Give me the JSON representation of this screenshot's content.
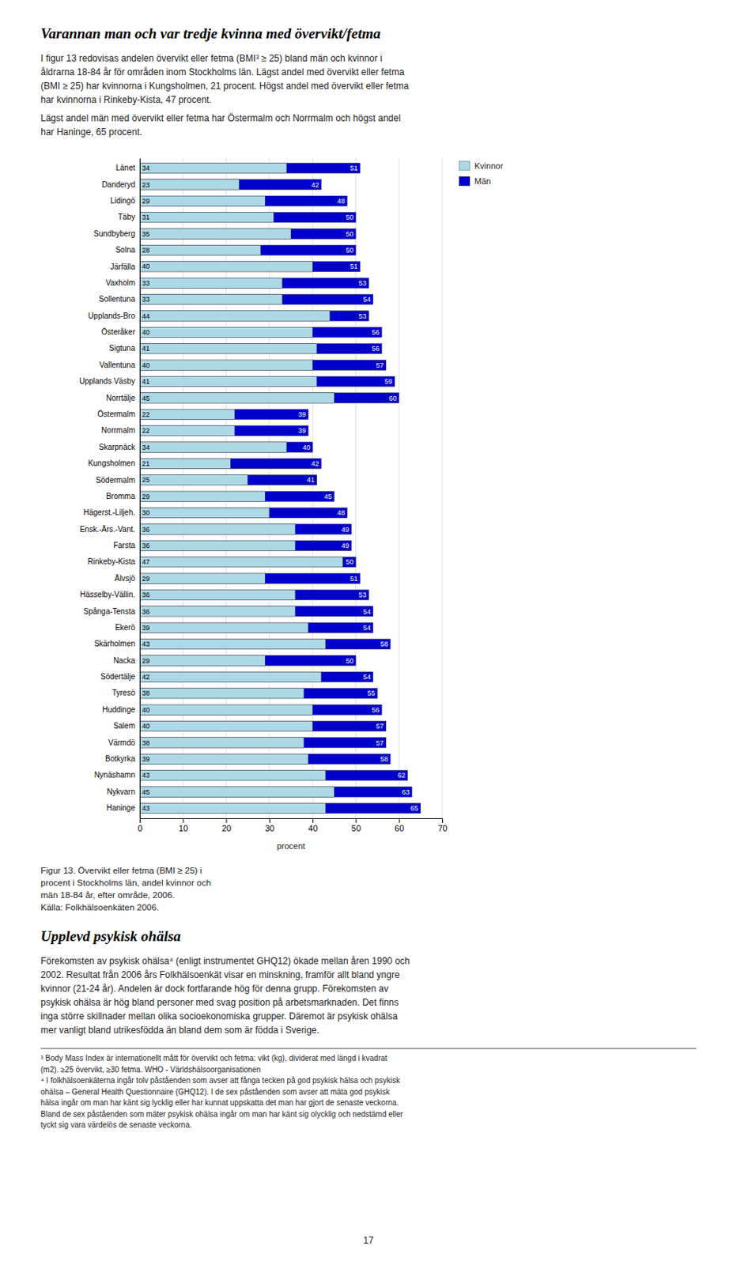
{
  "heading": "Varannan man och var tredje kvinna med övervikt/fetma",
  "intro_text": [
    "I figur 13 redovisas andelen övervikt eller fetma (BMI³ ≥ 25) bland män och kvinnor i",
    "åldrarna 18-84 år för områden inom Stockholms län. Lägst andel med övervikt eller fetma",
    "(BMI ≥ 25) har kvinnorna i Kungsholmen, 21 procent. Högst andel med övervikt eller fetma",
    "har kvinnorna i Rinkeby-Kista, 47 procent."
  ],
  "middle_text": [
    "Lägst andel män med övervikt eller fetma har Östermalm och Norrmalm och högst andel",
    "har Haninge, 65 procent."
  ],
  "chart_data": {
    "type": "bar",
    "orientation": "horizontal",
    "categories": [
      "Länet",
      "Danderyd",
      "Lidingö",
      "Täby",
      "Sundbyberg",
      "Solna",
      "Järfälla",
      "Vaxholm",
      "Sollentuna",
      "Upplands-Bro",
      "Österåker",
      "Sigtuna",
      "Vallentuna",
      "Upplands Väsby",
      "Norrtälje",
      "Östermalm",
      "Norrmalm",
      "Skarpnäck",
      "Kungsholmen",
      "Södermalm",
      "Bromma",
      "Hägerst.-Liljeh.",
      "Ensk.-Ärs.-Vant.",
      "Farsta",
      "Rinkeby-Kista",
      "Älvsjö",
      "Hässelby-Vällin.",
      "Spånga-Tensta",
      "Ekerö",
      "Skärholmen",
      "Nacka",
      "Södertälje",
      "Tyresö",
      "Huddinge",
      "Salem",
      "Värmdö",
      "Botkyrka",
      "Nynäshamn",
      "Nykvarn",
      "Haninge"
    ],
    "series": [
      {
        "name": "Kvinnor",
        "color": "#add8e6",
        "values": [
          34,
          23,
          29,
          31,
          35,
          28,
          40,
          33,
          33,
          44,
          40,
          41,
          40,
          41,
          45,
          22,
          22,
          34,
          21,
          25,
          29,
          30,
          36,
          36,
          47,
          29,
          36,
          36,
          39,
          43,
          29,
          42,
          38,
          40,
          40,
          38,
          39,
          43,
          45,
          43
        ]
      },
      {
        "name": "Män",
        "color": "#0000cd",
        "values": [
          51,
          42,
          48,
          50,
          50,
          50,
          51,
          53,
          54,
          53,
          56,
          56,
          57,
          59,
          60,
          39,
          39,
          40,
          42,
          41,
          45,
          48,
          49,
          49,
          50,
          51,
          53,
          54,
          54,
          58,
          50,
          54,
          55,
          56,
          57,
          57,
          58,
          62,
          63,
          65
        ]
      }
    ],
    "xlabel": "procent",
    "xlim": [
      0,
      70
    ],
    "xticks": [
      0,
      10,
      20,
      30,
      40,
      50,
      60,
      70
    ],
    "grid": true,
    "legend": "right",
    "data_labels": true
  },
  "caption": [
    "Figur 13. Övervikt eller fetma (BMI ≥ 25) i",
    "procent i Stockholms län, andel kvinnor och",
    "män 18-84 år, efter område, 2006.",
    "Källa: Folkhälsoenkäten 2006."
  ],
  "section_title": "Upplevd psykisk ohälsa",
  "section_text": [
    "Förekomsten av psykisk ohälsa⁴ (enligt instrumentet GHQ12) ökade mellan åren 1990 och",
    "2002. Resultat från 2006 års Folkhälsoenkät visar en minskning, framför allt bland yngre",
    "kvinnor (21-24 år). Andelen är dock fortfarande hög för denna grupp. Förekomsten av",
    "psykisk ohälsa är hög bland personer med svag position på arbetsmarknaden. Det finns",
    "inga större skillnader mellan olika socioekonomiska grupper. Däremot är psykisk ohälsa",
    "mer vanligt bland utrikesfödda än bland dem som är födda i Sverige."
  ],
  "footnotes": [
    "³ Body Mass Index är internationellt mått för övervikt och fetma: vikt (kg), dividerat med längd i kvadrat",
    "(m2). ≥25 övervikt, ≥30 fetma. WHO - Världshälsoorganisationen",
    "⁴ I folkhälsoenkäterna ingår tolv påståenden som avser att fånga tecken på god psykisk hälsa och psykisk",
    "ohälsa – General Health Questionnaire (GHQ12). I de sex påståenden som avser att mäta god psykisk",
    "hälsa ingår om man har känt sig lycklig eller har kunnat uppskatta det man har gjort de senaste veckorna.",
    "Bland de sex påståenden som mäter psykisk ohälsa ingår om man har känt sig olycklig och nedstämd eller",
    "tyckt sig vara värdelös de senaste veckorna."
  ],
  "page_number": "17"
}
